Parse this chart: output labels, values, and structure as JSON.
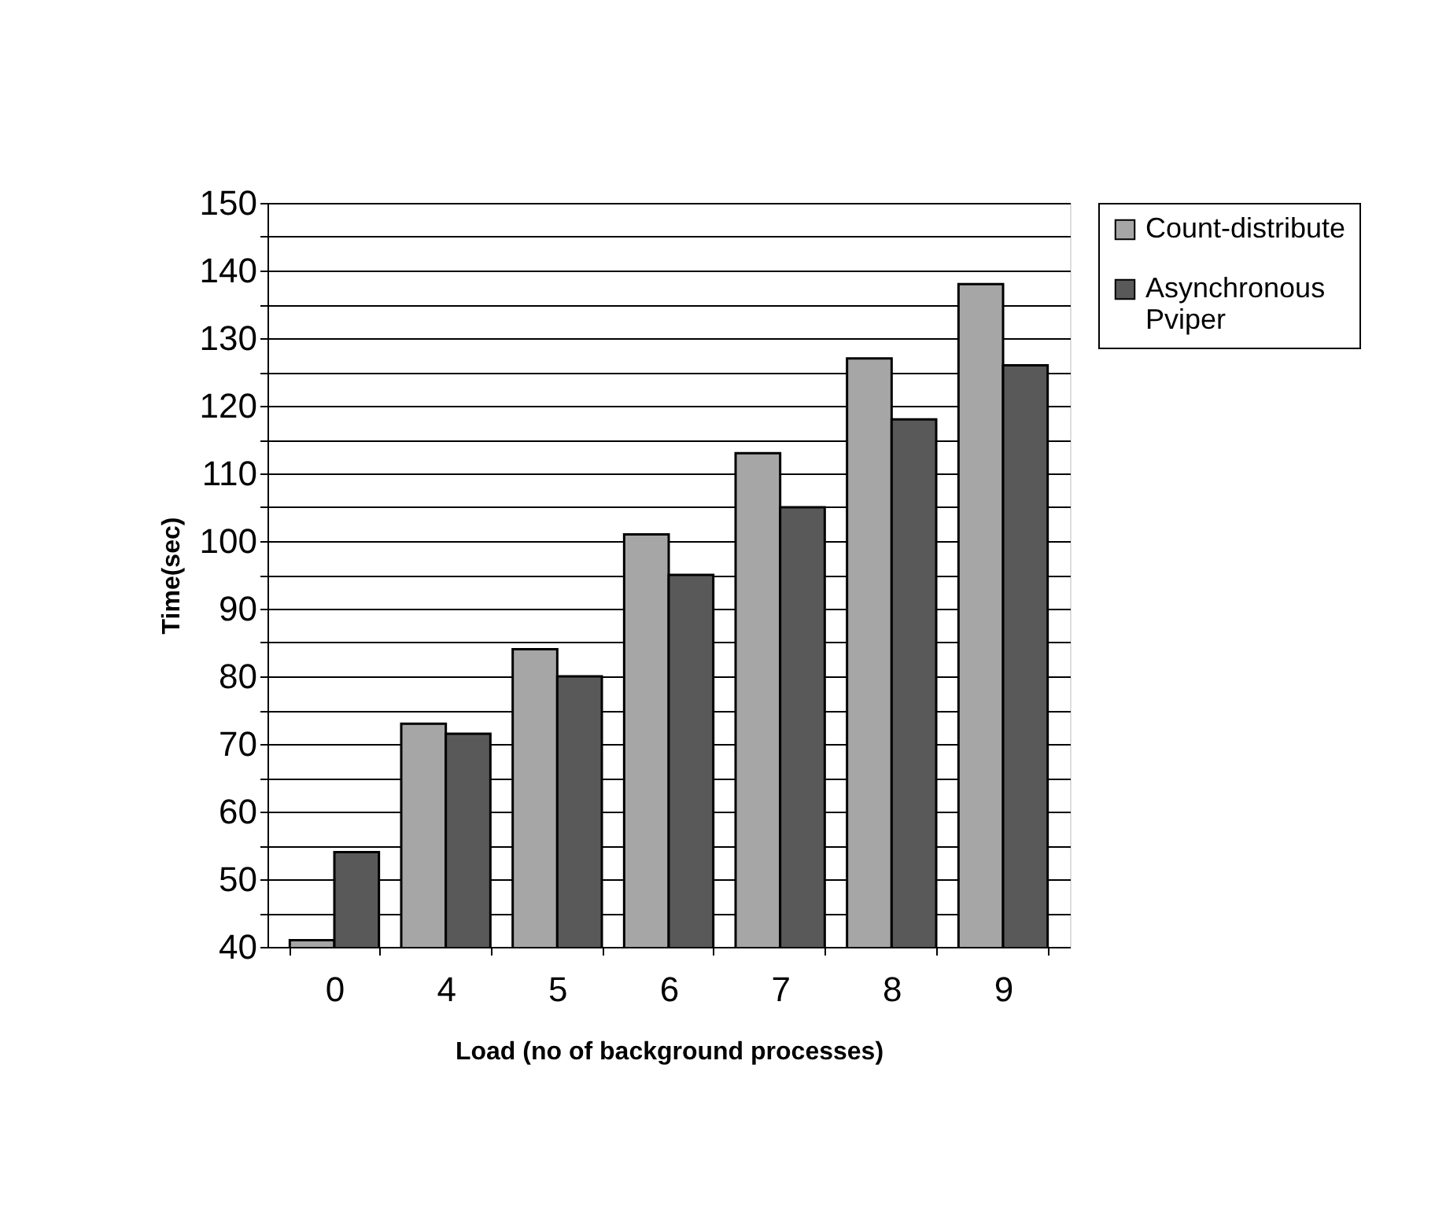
{
  "chart_data": {
    "type": "bar",
    "xlabel": "Load (no of background processes)",
    "ylabel": "Time(sec)",
    "categories": [
      "0",
      "4",
      "5",
      "6",
      "7",
      "8",
      "9"
    ],
    "series": [
      {
        "name": "Count-distribute",
        "color": "#a6a6a6",
        "values": [
          41,
          73,
          84,
          101,
          113,
          127,
          138
        ]
      },
      {
        "name": "Asynchronous Pviper",
        "color": "#595959",
        "values": [
          54,
          71.5,
          80,
          95,
          105,
          118,
          126
        ]
      }
    ],
    "ylim": [
      40,
      150
    ],
    "yticks": [
      40,
      {
        "value": 45,
        "label": null
      },
      50,
      {
        "value": 55,
        "label": null
      },
      60,
      {
        "value": 65,
        "label": null
      },
      70,
      {
        "value": 75,
        "label": null
      },
      80,
      {
        "value": 85,
        "label": null
      },
      90,
      {
        "value": 95,
        "label": null
      },
      100,
      {
        "value": 105,
        "label": null
      },
      110,
      {
        "value": 115,
        "label": null
      },
      120,
      {
        "value": 125,
        "label": null
      },
      130,
      {
        "value": 135,
        "label": null
      },
      140,
      {
        "value": 145,
        "label": null
      },
      150
    ],
    "grid": "y",
    "legend": "right"
  }
}
